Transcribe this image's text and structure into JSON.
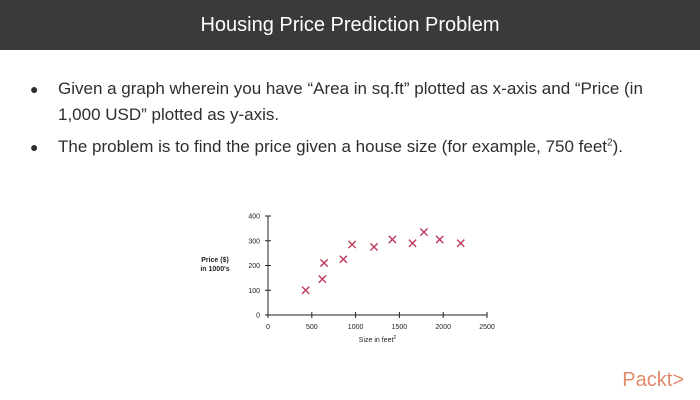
{
  "slide": {
    "title": "Housing Price Prediction Problem",
    "bullets": [
      {
        "text": "Given a graph wherein you have “Area in sq.ft” plotted as x-axis and “Price (in 1,000 USD” plotted as y-axis.",
        "sup": ""
      },
      {
        "text": "The problem is to find the price given a house size (for example, 750 feet",
        "sup": "2",
        "suffix": ")."
      }
    ],
    "logo_text": "Packt>"
  },
  "colors": {
    "title_bg": "#3a3a3a",
    "marker": "#c0395a",
    "logo": "#e08a6a"
  },
  "chart_data": {
    "type": "scatter",
    "marker": "x",
    "xlabel_text": "Size in feet",
    "xlabel_sup": "2",
    "ylabel_lines": [
      "Price ($)",
      "in 1000's"
    ],
    "xlim": [
      0,
      2500
    ],
    "ylim": [
      0,
      400
    ],
    "xticks": [
      0,
      500,
      1000,
      1500,
      2000,
      2500
    ],
    "yticks": [
      0,
      100,
      200,
      300,
      400
    ],
    "grid": false,
    "points": [
      {
        "x": 430,
        "y": 100
      },
      {
        "x": 620,
        "y": 145
      },
      {
        "x": 640,
        "y": 210
      },
      {
        "x": 860,
        "y": 225
      },
      {
        "x": 960,
        "y": 285
      },
      {
        "x": 1210,
        "y": 275
      },
      {
        "x": 1420,
        "y": 305
      },
      {
        "x": 1650,
        "y": 290
      },
      {
        "x": 1780,
        "y": 335
      },
      {
        "x": 1960,
        "y": 305
      },
      {
        "x": 2200,
        "y": 290
      }
    ]
  }
}
